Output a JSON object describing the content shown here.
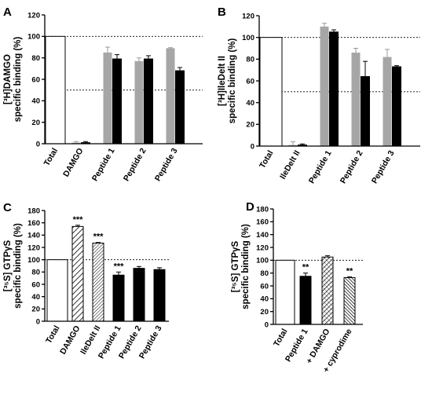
{
  "colors": {
    "white": "#ffffff",
    "grey": "#a6a6a6",
    "black": "#000000",
    "axis": "#000000"
  },
  "chart_data": [
    {
      "panel": "A",
      "type": "bar",
      "ylabel_line1": "[³H]DAMGO",
      "ylabel_line2": "specific binding (%)",
      "ylim": [
        0,
        120
      ],
      "yticks": [
        0,
        20,
        40,
        60,
        80,
        100,
        120
      ],
      "reference_lines": [
        100,
        50
      ],
      "groups": [
        {
          "label": "Total",
          "bars": [
            {
              "value": 100,
              "fill": "white"
            }
          ]
        },
        {
          "label": "DAMGO",
          "bars": [
            {
              "value": 1,
              "err": 1,
              "fill": "grey"
            },
            {
              "value": 1,
              "err": 1,
              "fill": "black"
            }
          ]
        },
        {
          "label": "Peptide 1",
          "bars": [
            {
              "value": 85,
              "err": 5,
              "fill": "grey"
            },
            {
              "value": 79,
              "err": 4,
              "fill": "black"
            }
          ]
        },
        {
          "label": "Peptide 2",
          "bars": [
            {
              "value": 77,
              "err": 3,
              "fill": "grey"
            },
            {
              "value": 79,
              "err": 3,
              "fill": "black"
            }
          ]
        },
        {
          "label": "Peptide 3",
          "bars": [
            {
              "value": 89,
              "err": 0.5,
              "fill": "grey"
            },
            {
              "value": 68,
              "err": 3,
              "fill": "black"
            }
          ]
        }
      ]
    },
    {
      "panel": "B",
      "type": "bar",
      "ylabel_line1": "[³H]IleDelt II",
      "ylabel_line2": "specific binding (%)",
      "ylim": [
        0,
        120
      ],
      "yticks": [
        0,
        20,
        40,
        60,
        80,
        100,
        120
      ],
      "reference_lines": [
        100,
        50
      ],
      "groups": [
        {
          "label": "Total",
          "bars": [
            {
              "value": 100,
              "fill": "white"
            }
          ]
        },
        {
          "label": "IleDelt II",
          "bars": [
            {
              "value": 1,
              "err": 3,
              "fill": "grey"
            },
            {
              "value": 1,
              "err": 1,
              "fill": "black"
            }
          ]
        },
        {
          "label": "Peptide 1",
          "bars": [
            {
              "value": 110,
              "err": 3,
              "fill": "grey"
            },
            {
              "value": 105,
              "err": 2,
              "fill": "black"
            }
          ]
        },
        {
          "label": "Peptide 2",
          "bars": [
            {
              "value": 86,
              "err": 4,
              "fill": "grey"
            },
            {
              "value": 64,
              "err": 14,
              "fill": "black"
            }
          ]
        },
        {
          "label": "Peptide 3",
          "bars": [
            {
              "value": 82,
              "err": 7,
              "fill": "grey"
            },
            {
              "value": 73,
              "err": 1,
              "fill": "black"
            }
          ]
        }
      ]
    },
    {
      "panel": "C",
      "type": "bar",
      "ylabel_line1": "[³⁵S] GTPγS",
      "ylabel_line2": "specific binding (%)",
      "ylim": [
        0,
        180
      ],
      "yticks": [
        0,
        20,
        40,
        60,
        80,
        100,
        120,
        140,
        160,
        180
      ],
      "reference_lines": [
        100
      ],
      "groups": [
        {
          "label": "Total",
          "bars": [
            {
              "value": 100,
              "fill": "white"
            }
          ]
        },
        {
          "label": "DAMGO",
          "bars": [
            {
              "value": 154,
              "err": 2,
              "fill": "hatch-wide",
              "stars": "***"
            }
          ]
        },
        {
          "label": "IleDelt II",
          "bars": [
            {
              "value": 127,
              "err": 1,
              "fill": "hatch-fine",
              "stars": "***"
            }
          ]
        },
        {
          "label": "Peptide 1",
          "bars": [
            {
              "value": 75,
              "err": 5,
              "fill": "black",
              "stars": "***"
            }
          ]
        },
        {
          "label": "Peptide 2",
          "bars": [
            {
              "value": 86,
              "err": 3,
              "fill": "black"
            }
          ]
        },
        {
          "label": "Peptide 3",
          "bars": [
            {
              "value": 84,
              "err": 3,
              "fill": "black"
            }
          ]
        }
      ]
    },
    {
      "panel": "D",
      "type": "bar",
      "ylabel_line1": "[³⁵S] GTPγS",
      "ylabel_line2": "specific binding (%)",
      "ylim": [
        0,
        180
      ],
      "yticks": [
        0,
        20,
        40,
        60,
        80,
        100,
        120,
        140,
        160,
        180
      ],
      "reference_lines": [
        100
      ],
      "groups": [
        {
          "label": "Total",
          "bars": [
            {
              "value": 100,
              "fill": "white"
            }
          ]
        },
        {
          "label": "Peptide 1",
          "bars": [
            {
              "value": 75,
              "err": 5,
              "fill": "black",
              "stars": "**"
            }
          ]
        },
        {
          "label": "+ DAMGO",
          "bars": [
            {
              "value": 105,
              "err": 2,
              "fill": "hatch-cross"
            }
          ]
        },
        {
          "label": "+ cyprodime",
          "bars": [
            {
              "value": 73,
              "err": 1,
              "fill": "hatch-dense",
              "stars": "**"
            }
          ]
        }
      ]
    }
  ]
}
